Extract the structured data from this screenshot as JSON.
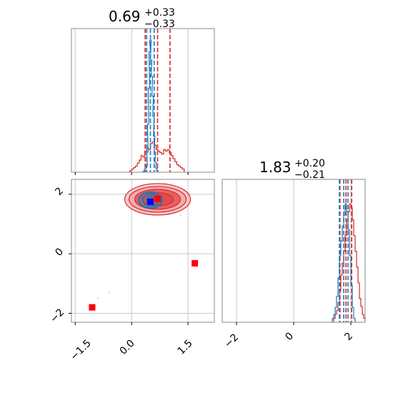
{
  "colors": {
    "red": "#d62728",
    "blue": "#1f77b4",
    "fill_dark": "#e34a4a",
    "fill_light": "#f2a3a3",
    "marker_red": "#ff0000",
    "marker_blue": "#0000ff"
  },
  "chart_data": [
    {
      "type": "histogram",
      "panel": "top-left (param 1 marginal)",
      "title": {
        "value": "0.69",
        "plus": "+0.33",
        "minus": "−0.33"
      },
      "xlim": [
        -1.6,
        2.2
      ],
      "grid": true,
      "series": [
        {
          "color": "red",
          "quantiles": [
            0.36,
            0.69,
            1.02
          ],
          "bins_x": [
            -0.05,
            0.0,
            0.05,
            0.1,
            0.15,
            0.2,
            0.25,
            0.3,
            0.35,
            0.4,
            0.45,
            0.5,
            0.55,
            0.6,
            0.65,
            0.7,
            0.75,
            0.8,
            0.85,
            0.9,
            0.95,
            1.0,
            1.05,
            1.1,
            1.15,
            1.2,
            1.25,
            1.3,
            1.35
          ],
          "counts": [
            1,
            2,
            3,
            4,
            6,
            8,
            11,
            10,
            14,
            16,
            15,
            19,
            20,
            18,
            15,
            14,
            13,
            12,
            15,
            14,
            15,
            13,
            11,
            9,
            7,
            5,
            4,
            3,
            2
          ]
        },
        {
          "color": "blue",
          "quantiles": [
            0.4,
            0.5,
            0.6
          ],
          "bins_x": [
            0.3,
            0.34,
            0.38,
            0.4,
            0.42,
            0.44,
            0.46,
            0.48,
            0.5,
            0.52,
            0.54,
            0.56,
            0.58,
            0.6,
            0.62,
            0.64,
            0.66
          ],
          "counts": [
            1,
            4,
            8,
            25,
            60,
            105,
            150,
            165,
            140,
            120,
            95,
            70,
            45,
            25,
            12,
            5,
            2
          ]
        }
      ]
    },
    {
      "type": "scatter-contour",
      "panel": "bottom-left (param 2 vs param 1)",
      "xlim": [
        -1.6,
        2.2
      ],
      "ylim": [
        -2.3,
        2.5
      ],
      "xticks": [
        "−1.5",
        "0.0",
        "1.5"
      ],
      "yticks": [
        "−2",
        "0",
        "2"
      ],
      "grid": true,
      "red_contour_center": [
        0.69,
        1.83
      ],
      "blue_contour_center": [
        0.5,
        1.8
      ],
      "markers": [
        {
          "color": "marker_red",
          "x": -1.05,
          "y": -1.8
        },
        {
          "color": "marker_red",
          "x": 1.68,
          "y": -0.32
        },
        {
          "color": "marker_red",
          "x": 0.69,
          "y": 1.85
        },
        {
          "color": "marker_blue",
          "x": 0.5,
          "y": 1.75
        }
      ]
    },
    {
      "type": "histogram",
      "panel": "bottom-right (param 2 marginal)",
      "title": {
        "value": "1.83",
        "plus": "+0.20",
        "minus": "−0.21"
      },
      "xlim": [
        -2.5,
        2.5
      ],
      "xticks": [
        "−2",
        "0",
        "2"
      ],
      "grid": true,
      "series": [
        {
          "color": "red",
          "quantiles": [
            1.62,
            1.83,
            2.03
          ],
          "bins_x": [
            1.4,
            1.45,
            1.5,
            1.55,
            1.6,
            1.65,
            1.7,
            1.75,
            1.8,
            1.85,
            1.9,
            1.95,
            2.0,
            2.05,
            2.1,
            2.15,
            2.2,
            2.25,
            2.3,
            2.35,
            2.4,
            2.45
          ],
          "counts": [
            1,
            2,
            3,
            5,
            8,
            12,
            15,
            18,
            22,
            26,
            28,
            30,
            29,
            26,
            22,
            18,
            14,
            10,
            6,
            4,
            2,
            1
          ]
        },
        {
          "color": "blue",
          "quantiles": [
            1.6,
            1.75,
            1.9
          ],
          "bins_x": [
            1.35,
            1.4,
            1.45,
            1.5,
            1.55,
            1.6,
            1.65,
            1.7,
            1.75,
            1.8,
            1.85,
            1.9,
            1.95,
            2.0,
            2.05,
            2.1
          ],
          "counts": [
            1,
            2,
            4,
            7,
            12,
            18,
            22,
            26,
            29,
            32,
            30,
            25,
            18,
            10,
            4,
            1
          ]
        }
      ]
    }
  ]
}
